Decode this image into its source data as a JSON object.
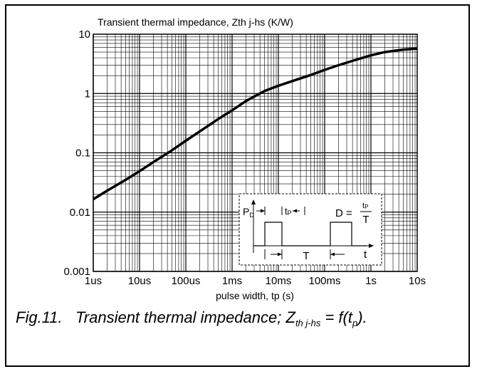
{
  "chart_data": {
    "type": "line",
    "title": "Transient thermal impedance, Zth j-hs (K/W)",
    "xlabel": "pulse width, tp (s)",
    "ylabel": "",
    "x_scale": "log",
    "y_scale": "log",
    "xlim": [
      1e-06,
      10
    ],
    "ylim": [
      0.001,
      10
    ],
    "grid": true,
    "x_ticks": [
      {
        "value": 1e-06,
        "label": "1us"
      },
      {
        "value": 1e-05,
        "label": "10us"
      },
      {
        "value": 0.0001,
        "label": "100us"
      },
      {
        "value": 0.001,
        "label": "1ms"
      },
      {
        "value": 0.01,
        "label": "10ms"
      },
      {
        "value": 0.1,
        "label": "100ms"
      },
      {
        "value": 1,
        "label": "1s"
      },
      {
        "value": 10,
        "label": "10s"
      }
    ],
    "y_ticks": [
      {
        "value": 0.001,
        "label": "0.001"
      },
      {
        "value": 0.01,
        "label": "0.01"
      },
      {
        "value": 0.1,
        "label": "0.1"
      },
      {
        "value": 1,
        "label": "1"
      },
      {
        "value": 10,
        "label": "10"
      }
    ],
    "series": [
      {
        "x": [
          1e-06,
          2e-06,
          5e-06,
          1e-05,
          2e-05,
          5e-05,
          0.0001,
          0.0002,
          0.0005,
          0.001,
          0.002,
          0.005,
          0.01,
          0.02,
          0.05,
          0.1,
          0.2,
          0.5,
          1,
          2,
          5,
          10
        ],
        "y": [
          0.0165,
          0.023,
          0.035,
          0.049,
          0.07,
          0.11,
          0.16,
          0.23,
          0.37,
          0.52,
          0.75,
          1.1,
          1.35,
          1.62,
          2.05,
          2.5,
          3.0,
          3.75,
          4.4,
          5.0,
          5.5,
          5.7
        ]
      }
    ]
  },
  "inset": {
    "pd_label": "P",
    "pd_sub": "D",
    "tp_label": "t",
    "tp_sub": "P",
    "period_label": "T",
    "time_label": "t",
    "formula_lhs": "D =",
    "formula_num": "t",
    "formula_num_sub": "P",
    "formula_den": "T"
  },
  "caption": {
    "fig": "Fig.11.",
    "text": "Transient thermal impedance; ",
    "z": "Z",
    "z_sub": "th j-hs",
    "eq": " = f(t",
    "t_sub": "p",
    "end": ")."
  },
  "colors": {
    "line": "#000000",
    "grid": "#000000",
    "background": "#ffffff"
  }
}
